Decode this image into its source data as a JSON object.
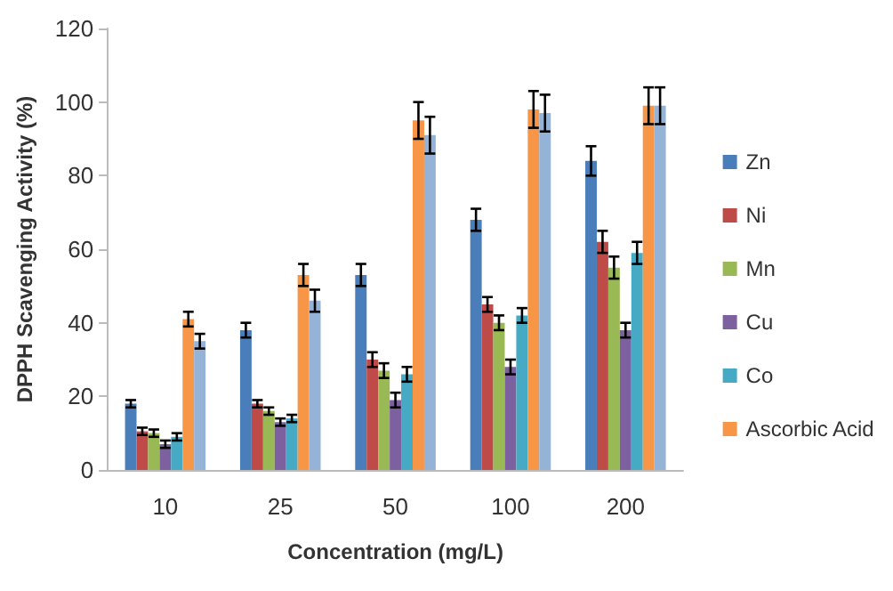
{
  "chart_data": {
    "type": "bar",
    "xlabel": "Concentration (mg/L)",
    "ylabel": "DPPH Scavenging Activity (%)",
    "categories": [
      "10",
      "25",
      "50",
      "100",
      "200"
    ],
    "series": [
      {
        "name": "Zn",
        "color": "#4a7ebb",
        "values": [
          18,
          38,
          53,
          68,
          84
        ],
        "errors": [
          1,
          2,
          3,
          3,
          4
        ]
      },
      {
        "name": "Ni",
        "color": "#be4b48",
        "values": [
          10.5,
          18,
          30,
          45,
          62
        ],
        "errors": [
          1,
          1,
          2,
          2,
          3
        ]
      },
      {
        "name": "Mn",
        "color": "#98b954",
        "values": [
          10,
          16,
          27,
          40,
          55
        ],
        "errors": [
          1,
          1,
          2,
          2,
          3
        ]
      },
      {
        "name": "Cu",
        "color": "#7d60a0",
        "values": [
          7,
          13,
          19,
          28,
          38
        ],
        "errors": [
          1,
          1,
          2,
          2,
          2
        ]
      },
      {
        "name": "Co",
        "color": "#46aac5",
        "values": [
          9,
          14,
          26,
          42,
          59
        ],
        "errors": [
          1,
          1,
          2,
          2,
          3
        ]
      },
      {
        "name": "Ascorbic Acid",
        "color": "#f79646",
        "values": [
          41,
          53,
          95,
          98,
          99
        ],
        "errors": [
          2,
          3,
          5,
          5,
          5
        ]
      },
      {
        "color": "#95b3d7",
        "values": [
          35,
          46,
          91,
          97,
          99
        ],
        "errors": [
          2,
          3,
          5,
          5,
          5
        ]
      }
    ],
    "ylim": [
      0,
      120
    ],
    "yticks": [
      0,
      20,
      40,
      60,
      80,
      100,
      120
    ],
    "grid": false,
    "legend": "right"
  }
}
